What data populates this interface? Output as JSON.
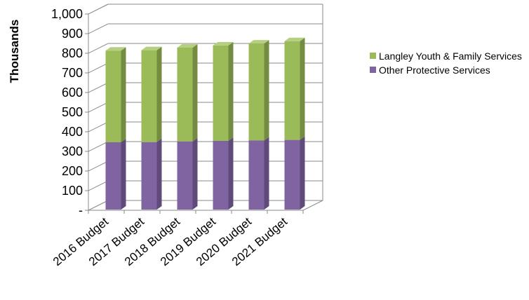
{
  "chart_data": {
    "type": "bar",
    "stacked": true,
    "three_d": true,
    "title": "",
    "xlabel": "",
    "ylabel": "Thousands",
    "ylim": [
      0,
      1000
    ],
    "y_ticks": [
      "-",
      "100",
      "200",
      "300",
      "400",
      "500",
      "600",
      "700",
      "800",
      "900",
      "1,000"
    ],
    "categories": [
      "2016 Budget",
      "2017 Budget",
      "2018 Budget",
      "2019 Budget",
      "2020 Budget",
      "2021 Budget"
    ],
    "series": [
      {
        "name": "Other Protective Services",
        "values": [
          343,
          344,
          347,
          350,
          352,
          355
        ]
      },
      {
        "name": "Langley Youth & Family Services",
        "values": [
          467,
          468,
          478,
          486,
          494,
          503
        ]
      }
    ],
    "legend_position": "right",
    "grid": true,
    "colors": {
      "Other Protective Services": {
        "front": "#8064a2",
        "top": "#9c86b8",
        "side": "#5f4a7a"
      },
      "Langley Youth & Family Services": {
        "front": "#9bbb59",
        "top": "#b5cf80",
        "side": "#748c42"
      },
      "gridline": "#8a8a8a"
    }
  },
  "legend": {
    "items": [
      {
        "label": "Langley Youth & Family Services",
        "color": "#9bbb59"
      },
      {
        "label": "Other Protective Services",
        "color": "#8064a2"
      }
    ]
  }
}
